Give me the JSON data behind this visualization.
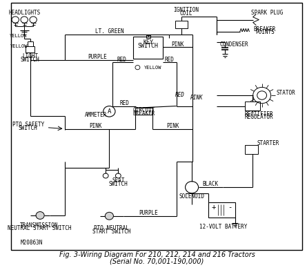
{
  "title_line1": "Fig. 3-Wiring Diagram For 210, 212, 214 and 216 Tractors",
  "title_line2": "(Serial No. 70,001-190,000)",
  "bg_color": "#ffffff",
  "line_color": "#000000",
  "font_size_label": 5.5,
  "font_size_title": 7.0,
  "part_number": "M20863N"
}
